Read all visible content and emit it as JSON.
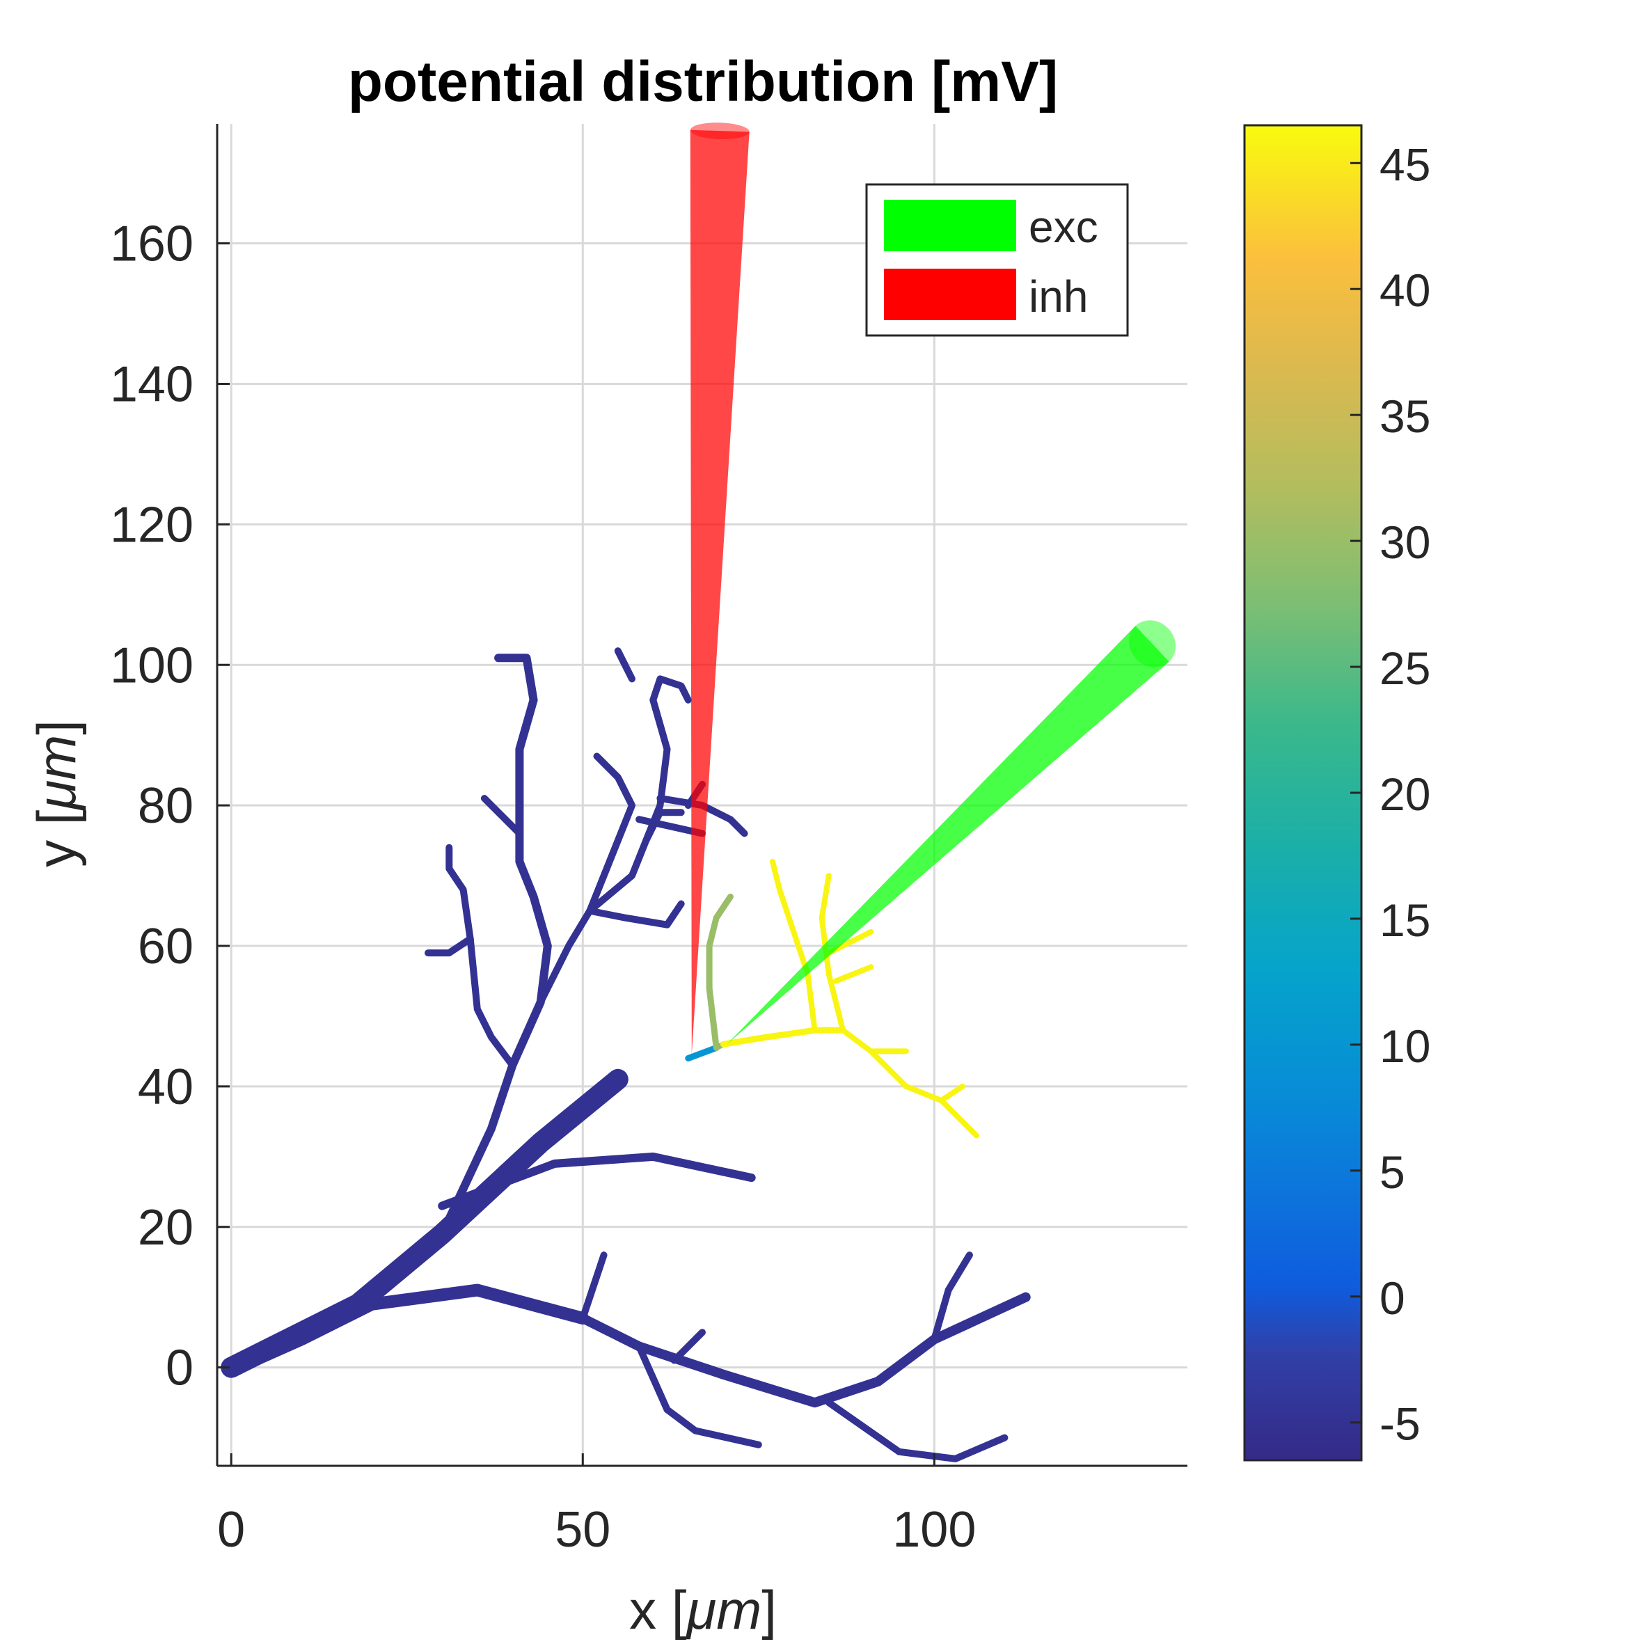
{
  "colors": {
    "background": "#ffffff",
    "grid": "#d9d9d9",
    "axis": "#262626",
    "dendrite_low": "#3a3290",
    "dendrite_high": "#f4ee1e",
    "exc": "#00ff00",
    "inh": "#ff0000"
  },
  "chart_data": {
    "type": "line",
    "title": "potential distribution [mV]",
    "xlabel_prefix": "x [",
    "xlabel_unit": "μm",
    "xlabel_suffix": "]",
    "ylabel_prefix": "y [",
    "ylabel_unit": "μm",
    "ylabel_suffix": "]",
    "xlim": [
      -2,
      136
    ],
    "ylim": [
      -14,
      177
    ],
    "xticks": [
      0,
      50,
      100
    ],
    "yticks": [
      0,
      20,
      40,
      60,
      80,
      100,
      120,
      140,
      160
    ],
    "grid": true,
    "legend": {
      "position": "top-right",
      "entries": [
        {
          "label": "exc",
          "color": "#00ff00"
        },
        {
          "label": "inh",
          "color": "#ff0000"
        }
      ]
    },
    "colorbar": {
      "ticks": [
        -5,
        0,
        5,
        10,
        15,
        20,
        25,
        30,
        35,
        40,
        45
      ],
      "range": [
        -6.5,
        46.5
      ],
      "colormap": "parula"
    },
    "electrodes": [
      {
        "name": "inh",
        "tip": [
          65.5,
          44.5
        ],
        "base": [
          69.5,
          176
        ],
        "base_halfwidth": 4.2,
        "color": "#ff0000"
      },
      {
        "name": "exc",
        "tip": [
          70.5,
          46
        ],
        "base": [
          131,
          103
        ],
        "base_halfwidth": 3.5,
        "color": "#00ff00"
      }
    ],
    "branches": [
      {
        "points": [
          [
            0,
            0
          ],
          [
            18,
            9
          ],
          [
            30,
            19
          ],
          [
            44,
            32
          ],
          [
            55,
            41
          ]
        ],
        "v": -5,
        "w": 30
      },
      {
        "points": [
          [
            1,
            0
          ],
          [
            10,
            4
          ],
          [
            20,
            9
          ],
          [
            35,
            11
          ],
          [
            50,
            7
          ]
        ],
        "v": -5,
        "w": 18
      },
      {
        "points": [
          [
            50,
            7
          ],
          [
            58,
            3
          ],
          [
            70,
            -1
          ],
          [
            83,
            -5
          ],
          [
            92,
            -2
          ],
          [
            100,
            4
          ],
          [
            113,
            10
          ]
        ],
        "v": -5,
        "w": 14
      },
      {
        "points": [
          [
            50,
            7
          ],
          [
            53,
            16
          ]
        ],
        "v": -5,
        "w": 10
      },
      {
        "points": [
          [
            58,
            3
          ],
          [
            62,
            -6
          ],
          [
            66,
            -9
          ],
          [
            75,
            -11
          ]
        ],
        "v": -5,
        "w": 10
      },
      {
        "points": [
          [
            63,
            1
          ],
          [
            67,
            5
          ]
        ],
        "v": -5,
        "w": 10
      },
      {
        "points": [
          [
            85,
            -5
          ],
          [
            95,
            -12
          ],
          [
            103,
            -13
          ],
          [
            110,
            -10
          ]
        ],
        "v": -5,
        "w": 10
      },
      {
        "points": [
          [
            100,
            4
          ],
          [
            102,
            11
          ],
          [
            105,
            16
          ]
        ],
        "v": -5,
        "w": 10
      },
      {
        "points": [
          [
            30,
            23
          ],
          [
            46,
            29
          ],
          [
            60,
            30
          ],
          [
            74,
            27
          ]
        ],
        "v": -5,
        "w": 12
      },
      {
        "points": [
          [
            30,
            19
          ],
          [
            37,
            34
          ],
          [
            40,
            43
          ],
          [
            44,
            52
          ],
          [
            45,
            60
          ],
          [
            43,
            67
          ],
          [
            41,
            72
          ],
          [
            41,
            88
          ],
          [
            43,
            95
          ],
          [
            42,
            101
          ],
          [
            38,
            101
          ]
        ],
        "v": -5,
        "w": 12
      },
      {
        "points": [
          [
            40,
            43
          ],
          [
            37,
            47
          ],
          [
            35,
            51
          ],
          [
            34,
            61
          ],
          [
            33,
            68
          ],
          [
            31,
            71
          ],
          [
            31,
            74
          ]
        ],
        "v": -5,
        "w": 10
      },
      {
        "points": [
          [
            34,
            61
          ],
          [
            31,
            59
          ],
          [
            28,
            59
          ]
        ],
        "v": -5,
        "w": 10
      },
      {
        "points": [
          [
            41,
            76
          ],
          [
            36,
            81
          ]
        ],
        "v": -5,
        "w": 10
      },
      {
        "points": [
          [
            44,
            52
          ],
          [
            48,
            60
          ],
          [
            51,
            65
          ],
          [
            53,
            70
          ],
          [
            57,
            80
          ],
          [
            55,
            84
          ],
          [
            52,
            87
          ]
        ],
        "v": -5,
        "w": 10
      },
      {
        "points": [
          [
            51,
            65
          ],
          [
            56,
            64
          ],
          [
            62,
            63
          ],
          [
            64,
            66
          ]
        ],
        "v": -5,
        "w": 10
      },
      {
        "points": [
          [
            51,
            65
          ],
          [
            57,
            70
          ],
          [
            59,
            75
          ],
          [
            61,
            80
          ],
          [
            62,
            88
          ],
          [
            60,
            95
          ],
          [
            61,
            98
          ],
          [
            64,
            97
          ],
          [
            65,
            95
          ]
        ],
        "v": -5,
        "w": 10
      },
      {
        "points": [
          [
            59,
            75
          ],
          [
            61,
            79
          ],
          [
            64,
            79
          ]
        ],
        "v": -5,
        "w": 10
      },
      {
        "points": [
          [
            61,
            81
          ],
          [
            67,
            80
          ],
          [
            71,
            78
          ],
          [
            73,
            76
          ]
        ],
        "v": -5,
        "w": 10
      },
      {
        "points": [
          [
            58,
            78
          ],
          [
            67,
            76
          ]
        ],
        "v": -5,
        "w": 10
      },
      {
        "points": [
          [
            57,
            98
          ],
          [
            55,
            102
          ]
        ],
        "v": -5,
        "w": 10
      },
      {
        "points": [
          [
            65,
            80
          ],
          [
            67,
            83
          ]
        ],
        "v": -5,
        "w": 10
      },
      {
        "points": [
          [
            65,
            44
          ],
          [
            69,
            45.5
          ]
        ],
        "v": 10,
        "w": 9
      },
      {
        "points": [
          [
            69,
            45.5
          ],
          [
            70,
            46
          ]
        ],
        "v": 28,
        "w": 8
      },
      {
        "points": [
          [
            69,
            45.5
          ],
          [
            68,
            54
          ],
          [
            68,
            60
          ],
          [
            69,
            64
          ],
          [
            71,
            67
          ]
        ],
        "v": 30,
        "w": 9
      },
      {
        "points": [
          [
            70,
            46
          ],
          [
            76,
            47
          ],
          [
            83,
            48
          ],
          [
            87,
            48
          ]
        ],
        "v": 46,
        "w": 9
      },
      {
        "points": [
          [
            83,
            48
          ],
          [
            82,
            56
          ],
          [
            80,
            62
          ],
          [
            78,
            68
          ],
          [
            77,
            72
          ]
        ],
        "v": 46,
        "w": 8
      },
      {
        "points": [
          [
            87,
            48
          ],
          [
            85,
            56
          ],
          [
            84,
            64
          ],
          [
            85,
            70
          ]
        ],
        "v": 46,
        "w": 8
      },
      {
        "points": [
          [
            86,
            55
          ],
          [
            91,
            57
          ]
        ],
        "v": 46,
        "w": 8
      },
      {
        "points": [
          [
            85,
            59
          ],
          [
            91,
            62
          ]
        ],
        "v": 46,
        "w": 8
      },
      {
        "points": [
          [
            87,
            48
          ],
          [
            91,
            45
          ],
          [
            96,
            45
          ]
        ],
        "v": 46,
        "w": 8
      },
      {
        "points": [
          [
            91,
            45
          ],
          [
            96,
            40
          ],
          [
            101,
            38
          ],
          [
            105,
            34
          ],
          [
            106,
            33
          ]
        ],
        "v": 46,
        "w": 8
      },
      {
        "points": [
          [
            101,
            38
          ],
          [
            104,
            40
          ]
        ],
        "v": 46,
        "w": 8
      }
    ]
  }
}
